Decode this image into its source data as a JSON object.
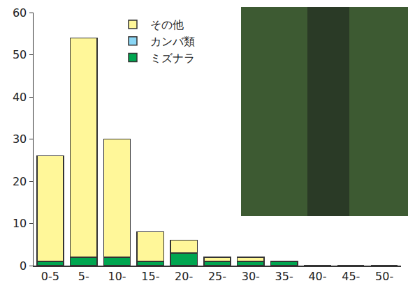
{
  "chart_data": {
    "type": "bar",
    "stacked": true,
    "categories": [
      "0-5",
      "5-",
      "10-",
      "15-",
      "20-",
      "25-",
      "30-",
      "35-",
      "40-",
      "45-",
      "50-"
    ],
    "series": [
      {
        "name": "ミズナラ",
        "color": "#00a650",
        "values": [
          1,
          2,
          2,
          1,
          3,
          1,
          1,
          1,
          0,
          0,
          0
        ]
      },
      {
        "name": "カンバ類",
        "color": "#8ad6f5",
        "values": [
          0,
          0,
          0,
          0,
          0,
          0,
          0,
          0,
          0,
          0,
          0
        ]
      },
      {
        "name": "その他",
        "color": "#fff799",
        "values": [
          25,
          52,
          28,
          7,
          3,
          1,
          1,
          0,
          0,
          0,
          0
        ]
      }
    ],
    "ylim": [
      0,
      60
    ],
    "yticks": [
      0,
      10,
      20,
      30,
      40,
      50,
      60
    ],
    "grid": false,
    "legend": "upper center"
  }
}
